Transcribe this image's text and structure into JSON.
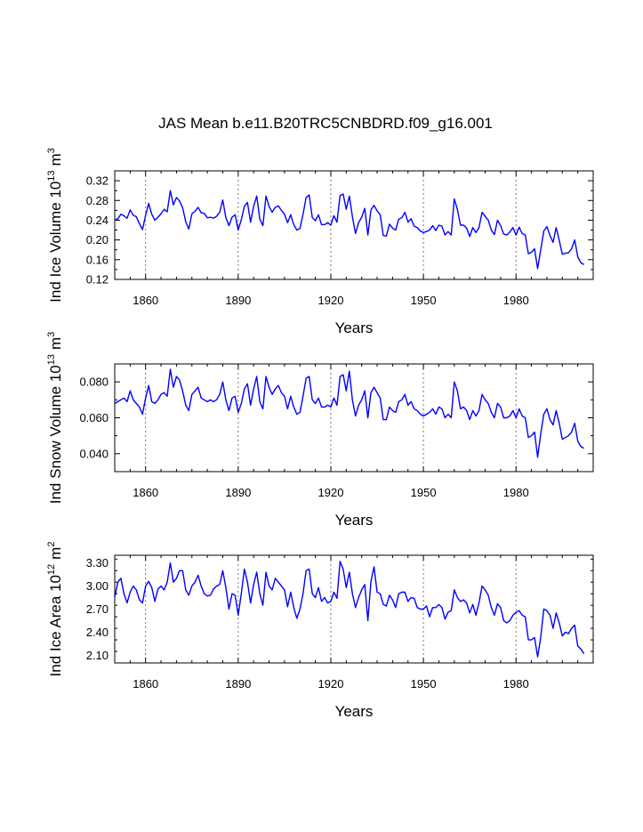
{
  "figure_title": "JAS Mean b.e11.B20TRC5CNBDRD.f09_g16.001",
  "chart_data": [
    {
      "type": "line",
      "ylabel_main": "Ind Ice Volume 10",
      "ylabel_exp": "13",
      "ylabel_unit": "m",
      "ylabel_unit_exp": "3",
      "xlabel": "Years",
      "xlim": [
        1850,
        2005
      ],
      "ylim": [
        0.12,
        0.34
      ],
      "xticks": [
        1860,
        1890,
        1920,
        1950,
        1980
      ],
      "yticks": [
        0.12,
        0.16,
        0.2,
        0.24,
        0.28,
        0.32
      ],
      "ytick_labels": [
        "0.12",
        "0.16",
        "0.20",
        "0.24",
        "0.28",
        "0.32"
      ],
      "x_start": 1850,
      "values": [
        0.24,
        0.243,
        0.252,
        0.249,
        0.244,
        0.261,
        0.25,
        0.247,
        0.233,
        0.221,
        0.25,
        0.274,
        0.252,
        0.24,
        0.246,
        0.253,
        0.262,
        0.257,
        0.3,
        0.271,
        0.286,
        0.279,
        0.265,
        0.237,
        0.222,
        0.253,
        0.258,
        0.266,
        0.255,
        0.254,
        0.245,
        0.246,
        0.244,
        0.248,
        0.256,
        0.281,
        0.245,
        0.229,
        0.246,
        0.251,
        0.22,
        0.241,
        0.268,
        0.276,
        0.236,
        0.268,
        0.289,
        0.242,
        0.229,
        0.289,
        0.268,
        0.256,
        0.266,
        0.269,
        0.26,
        0.252,
        0.235,
        0.251,
        0.231,
        0.22,
        0.223,
        0.252,
        0.286,
        0.291,
        0.245,
        0.239,
        0.251,
        0.231,
        0.231,
        0.235,
        0.23,
        0.249,
        0.236,
        0.29,
        0.293,
        0.262,
        0.289,
        0.247,
        0.213,
        0.235,
        0.246,
        0.264,
        0.21,
        0.261,
        0.27,
        0.259,
        0.251,
        0.209,
        0.208,
        0.232,
        0.224,
        0.22,
        0.242,
        0.245,
        0.256,
        0.236,
        0.243,
        0.228,
        0.225,
        0.218,
        0.215,
        0.217,
        0.22,
        0.229,
        0.219,
        0.23,
        0.228,
        0.21,
        0.217,
        0.21,
        0.283,
        0.262,
        0.23,
        0.23,
        0.224,
        0.207,
        0.225,
        0.215,
        0.225,
        0.256,
        0.248,
        0.24,
        0.22,
        0.211,
        0.24,
        0.229,
        0.212,
        0.21,
        0.216,
        0.225,
        0.21,
        0.226,
        0.213,
        0.21,
        0.172,
        0.175,
        0.182,
        0.142,
        0.18,
        0.218,
        0.227,
        0.209,
        0.195,
        0.225,
        0.199,
        0.171,
        0.173,
        0.174,
        0.182,
        0.2,
        0.166,
        0.154,
        0.15
      ]
    },
    {
      "type": "line",
      "ylabel_main": "Ind Snow Volume 10",
      "ylabel_exp": "13",
      "ylabel_unit": "m",
      "ylabel_unit_exp": "3",
      "xlabel": "Years",
      "xlim": [
        1850,
        2005
      ],
      "ylim": [
        0.03,
        0.09
      ],
      "xticks": [
        1860,
        1890,
        1920,
        1950,
        1980
      ],
      "yticks": [
        0.04,
        0.06,
        0.08
      ],
      "ytick_labels": [
        "0.040",
        "0.060",
        "0.080"
      ],
      "x_start": 1850,
      "values": [
        0.068,
        0.069,
        0.07,
        0.071,
        0.069,
        0.075,
        0.07,
        0.068,
        0.066,
        0.062,
        0.071,
        0.078,
        0.069,
        0.068,
        0.07,
        0.073,
        0.074,
        0.072,
        0.087,
        0.077,
        0.083,
        0.081,
        0.075,
        0.067,
        0.064,
        0.073,
        0.075,
        0.077,
        0.071,
        0.07,
        0.069,
        0.07,
        0.069,
        0.07,
        0.073,
        0.08,
        0.07,
        0.064,
        0.071,
        0.072,
        0.063,
        0.068,
        0.076,
        0.079,
        0.067,
        0.076,
        0.083,
        0.069,
        0.065,
        0.083,
        0.077,
        0.073,
        0.076,
        0.078,
        0.074,
        0.072,
        0.065,
        0.072,
        0.066,
        0.062,
        0.063,
        0.072,
        0.082,
        0.083,
        0.07,
        0.068,
        0.071,
        0.066,
        0.066,
        0.067,
        0.066,
        0.071,
        0.067,
        0.083,
        0.084,
        0.075,
        0.086,
        0.07,
        0.061,
        0.067,
        0.07,
        0.075,
        0.06,
        0.074,
        0.077,
        0.074,
        0.071,
        0.059,
        0.059,
        0.066,
        0.064,
        0.063,
        0.069,
        0.07,
        0.073,
        0.067,
        0.069,
        0.065,
        0.064,
        0.062,
        0.061,
        0.062,
        0.063,
        0.065,
        0.062,
        0.066,
        0.065,
        0.06,
        0.062,
        0.06,
        0.08,
        0.075,
        0.065,
        0.066,
        0.064,
        0.059,
        0.064,
        0.061,
        0.064,
        0.073,
        0.07,
        0.068,
        0.063,
        0.06,
        0.068,
        0.066,
        0.06,
        0.06,
        0.061,
        0.064,
        0.06,
        0.065,
        0.061,
        0.06,
        0.049,
        0.05,
        0.052,
        0.038,
        0.051,
        0.062,
        0.065,
        0.059,
        0.056,
        0.064,
        0.057,
        0.048,
        0.049,
        0.05,
        0.052,
        0.057,
        0.047,
        0.044,
        0.043
      ]
    },
    {
      "type": "line",
      "ylabel_main": "Ind Ice Area 10",
      "ylabel_exp": "12",
      "ylabel_unit": "m",
      "ylabel_unit_exp": "2",
      "xlabel": "Years",
      "xlim": [
        1850,
        2005
      ],
      "ylim": [
        2.0,
        3.4
      ],
      "xticks": [
        1860,
        1890,
        1920,
        1950,
        1980
      ],
      "yticks": [
        2.1,
        2.4,
        2.7,
        3.0,
        3.3
      ],
      "ytick_labels": [
        "2.10",
        "2.40",
        "2.70",
        "3.00",
        "3.30"
      ],
      "x_start": 1850,
      "values": [
        2.85,
        3.05,
        3.1,
        2.9,
        2.78,
        2.92,
        3.0,
        2.95,
        2.82,
        2.78,
        3.0,
        3.06,
        2.98,
        2.8,
        2.96,
        3.0,
        2.95,
        3.05,
        3.3,
        3.05,
        3.1,
        3.2,
        3.2,
        2.95,
        2.88,
        3.0,
        3.05,
        3.14,
        3.0,
        2.9,
        2.87,
        2.88,
        2.96,
        3.0,
        3.02,
        3.2,
        2.98,
        2.7,
        2.9,
        2.88,
        2.62,
        2.9,
        3.22,
        3.05,
        2.78,
        3.02,
        3.18,
        2.9,
        2.75,
        3.18,
        3.0,
        2.95,
        3.1,
        3.05,
        3.0,
        2.95,
        2.73,
        2.92,
        2.72,
        2.58,
        2.7,
        2.9,
        3.2,
        3.22,
        2.9,
        2.85,
        2.98,
        2.8,
        2.85,
        2.78,
        2.8,
        2.92,
        2.84,
        3.32,
        3.22,
        2.98,
        3.18,
        2.9,
        2.72,
        2.85,
        2.95,
        3.02,
        2.55,
        3.06,
        3.25,
        2.92,
        2.9,
        2.76,
        2.74,
        2.88,
        2.82,
        2.72,
        2.9,
        2.92,
        2.92,
        2.8,
        2.85,
        2.84,
        2.72,
        2.7,
        2.7,
        2.74,
        2.6,
        2.72,
        2.72,
        2.76,
        2.72,
        2.57,
        2.66,
        2.68,
        2.95,
        2.85,
        2.8,
        2.82,
        2.78,
        2.65,
        2.76,
        2.62,
        2.78,
        3.0,
        2.95,
        2.88,
        2.72,
        2.62,
        2.77,
        2.72,
        2.55,
        2.52,
        2.55,
        2.62,
        2.66,
        2.68,
        2.62,
        2.6,
        2.3,
        2.3,
        2.33,
        2.08,
        2.33,
        2.7,
        2.68,
        2.62,
        2.45,
        2.65,
        2.52,
        2.35,
        2.4,
        2.38,
        2.45,
        2.49,
        2.22,
        2.18,
        2.12
      ]
    }
  ],
  "colors": {
    "line": "#0000ff",
    "axes": "#000000",
    "gridlines": "#555555",
    "background": "#ffffff"
  }
}
